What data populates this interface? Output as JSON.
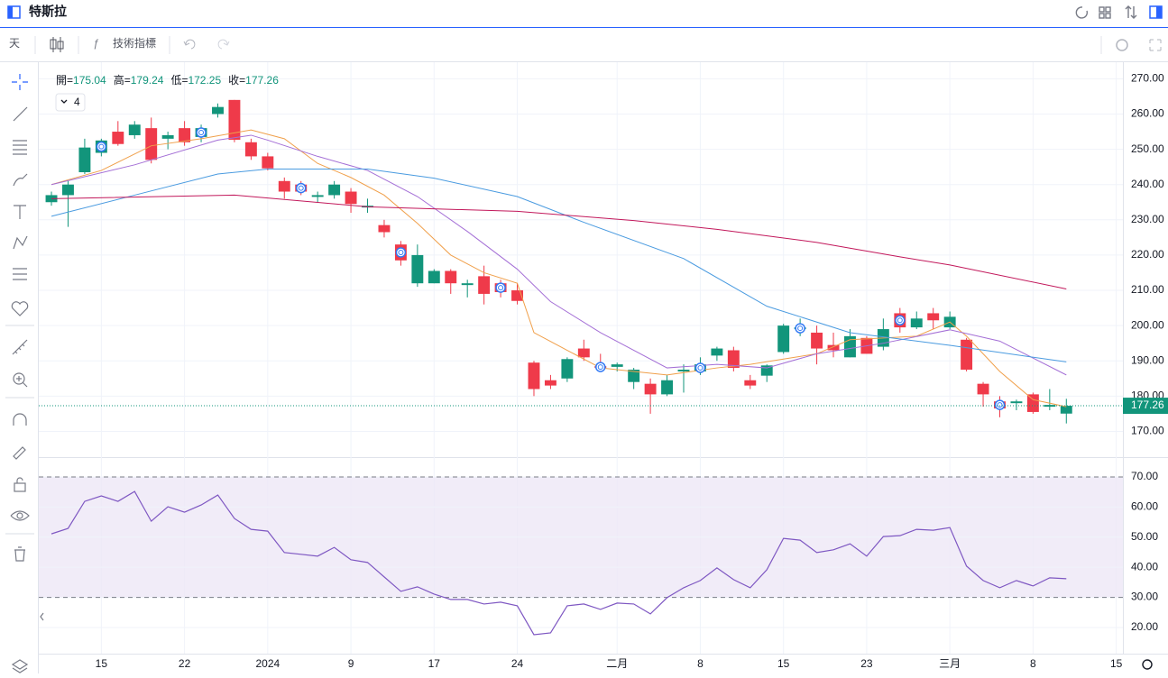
{
  "chart_data": {
    "type": "candlestick",
    "title": "特斯拉",
    "interval": "天",
    "indicator_button": "技術指標",
    "ohlc_labels": [
      "開=",
      "高=",
      "低=",
      "收="
    ],
    "ma_count": 4,
    "up_color": "#12957b",
    "down_color": "#ef3a4a",
    "open": [
      235,
      237,
      243.5,
      249,
      255,
      254,
      256,
      253,
      256,
      253.5,
      260,
      264,
      252,
      248,
      241,
      240,
      236.5,
      237,
      238,
      233.5,
      228.5,
      223,
      212,
      212,
      215.5,
      211.5,
      214,
      212,
      210,
      189.5,
      184.5,
      185,
      193.5,
      188.5,
      188.3,
      184,
      183.5,
      180.5,
      187,
      187,
      191.5,
      193,
      184.5,
      185.8,
      192.5,
      199,
      198,
      194.5,
      191,
      196.5,
      194,
      203.5,
      199.5,
      203.5,
      199.5,
      196,
      183.5,
      178.5,
      178,
      180.5,
      177,
      175.04
    ],
    "high": [
      238,
      241,
      253,
      253,
      258,
      258,
      259,
      255,
      258,
      257,
      263,
      264,
      253,
      249,
      242,
      241,
      238,
      241,
      239,
      236,
      230,
      224,
      223,
      216,
      216,
      213,
      217,
      213,
      212,
      190,
      186,
      191,
      196,
      192,
      189.5,
      188,
      185,
      186,
      189,
      191,
      194,
      194,
      186,
      189,
      200.5,
      202,
      200,
      198,
      199,
      197,
      202,
      205,
      204,
      205,
      204,
      196.5,
      184,
      180,
      179,
      181,
      182,
      179.24
    ],
    "low": [
      234,
      228,
      243,
      248,
      251,
      253,
      246,
      250,
      251,
      252,
      259,
      252,
      247,
      244,
      236,
      237,
      235,
      236,
      232,
      232,
      225,
      217,
      211,
      212,
      209,
      208,
      206,
      208,
      206,
      180,
      182,
      184,
      190,
      187,
      187,
      182,
      175,
      180,
      181,
      186,
      190,
      187,
      182,
      184,
      192,
      197,
      189,
      191,
      191,
      192,
      193,
      198,
      199,
      199,
      199,
      187,
      177,
      174,
      176,
      175,
      176,
      172.25
    ],
    "close": [
      237,
      240,
      250.5,
      252.5,
      251.5,
      257,
      247,
      254,
      252,
      256,
      262,
      252.7,
      248,
      244.6,
      238,
      238,
      237,
      240,
      234.5,
      234,
      226.5,
      218.5,
      220,
      215.5,
      212,
      212,
      209,
      209.5,
      207,
      182,
      183,
      190.5,
      191,
      188,
      189,
      187.5,
      180.5,
      184.5,
      187.5,
      189,
      193.5,
      188,
      183,
      188.7,
      200,
      199.5,
      193.5,
      193,
      197,
      192,
      199,
      199.5,
      202,
      201.5,
      202.5,
      187.5,
      180.5,
      176.5,
      178.5,
      175.5,
      177.5,
      177.26
    ],
    "event_markers": [
      3,
      9,
      15,
      21,
      27,
      33,
      39,
      45,
      51,
      57
    ],
    "ma_series": [
      {
        "color": "#f0a04b",
        "x": [
          0,
          3,
          6,
          9,
          12,
          14,
          16,
          18,
          20,
          22,
          24,
          26,
          28,
          29,
          31,
          33,
          35,
          37,
          40,
          42,
          44,
          46,
          48,
          50,
          52,
          54,
          55,
          57,
          59,
          61
        ],
        "values": [
          240,
          244,
          251,
          253,
          255.5,
          253,
          246,
          242,
          237,
          229,
          220,
          215,
          212,
          198,
          193,
          188,
          187,
          186,
          188,
          189,
          190.5,
          192,
          196,
          196.5,
          197,
          201,
          197,
          187,
          179,
          177
        ]
      },
      {
        "color": "#a46fd6",
        "x": [
          0,
          5,
          10,
          12,
          13,
          16,
          19,
          22,
          25,
          28,
          30,
          33,
          37,
          40,
          43,
          46,
          50,
          54,
          57,
          61
        ],
        "values": [
          240,
          245.6,
          252.6,
          254,
          252.6,
          248,
          244,
          236.6,
          226.7,
          216,
          206.8,
          198,
          188,
          189,
          188,
          192,
          195,
          198.8,
          195.6,
          186
        ]
      },
      {
        "color": "#4a9be0",
        "x": [
          0,
          5,
          10,
          13,
          19,
          23,
          28,
          32,
          38,
          43,
          48,
          54,
          61
        ],
        "values": [
          231,
          237,
          243,
          244.4,
          244.4,
          241.8,
          236.6,
          229.3,
          219,
          205.5,
          198,
          194.4,
          189.7
        ]
      },
      {
        "color": "#c2185b",
        "x": [
          0,
          11,
          19,
          28,
          35,
          40,
          46,
          51,
          54,
          61
        ],
        "values": [
          236,
          237,
          233.7,
          232.4,
          229.8,
          227.3,
          223.6,
          219.5,
          217.2,
          210.4
        ]
      }
    ],
    "xlim": [
      -0.76,
      64.4
    ],
    "xticks": [
      {
        "value": 3,
        "label": "15"
      },
      {
        "value": 8,
        "label": "22"
      },
      {
        "value": 13,
        "label": "2024"
      },
      {
        "value": 18,
        "label": "9"
      },
      {
        "value": 23,
        "label": "17"
      },
      {
        "value": 28,
        "label": "24"
      },
      {
        "value": 34,
        "label": "二月"
      },
      {
        "value": 39,
        "label": "8"
      },
      {
        "value": 44,
        "label": "15"
      },
      {
        "value": 49,
        "label": "23"
      },
      {
        "value": 54,
        "label": "三月"
      },
      {
        "value": 59,
        "label": "8"
      },
      {
        "value": 64,
        "label": "15"
      }
    ],
    "ylim": [
      162.7,
      274.7
    ],
    "yticks": [
      {
        "value": 170,
        "label": "170.00"
      },
      {
        "value": 180,
        "label": "180.00"
      },
      {
        "value": 190,
        "label": "190.00"
      },
      {
        "value": 200,
        "label": "200.00"
      },
      {
        "value": 210,
        "label": "210.00"
      },
      {
        "value": 220,
        "label": "220.00"
      },
      {
        "value": 230,
        "label": "230.00"
      },
      {
        "value": 240,
        "label": "240.00"
      },
      {
        "value": 250,
        "label": "250.00"
      },
      {
        "value": 260,
        "label": "260.00"
      },
      {
        "value": 270,
        "label": "270.00"
      }
    ],
    "rsi": {
      "color": "#7e57c2",
      "band_color": "#ede7f6",
      "bands": [
        30,
        70
      ],
      "values": [
        51.1,
        52.9,
        61.9,
        63.7,
        61.9,
        65.2,
        55.3,
        60.1,
        58.3,
        60.7,
        64,
        56.2,
        52.6,
        52,
        44.9,
        44.3,
        43.7,
        46.6,
        42.5,
        41.6,
        36.8,
        32,
        33.5,
        31.1,
        29.3,
        29.3,
        27.8,
        28.4,
        27.2,
        17.6,
        18.2,
        27.2,
        27.8,
        26,
        28.1,
        27.8,
        24.5,
        29.9,
        33.2,
        35.6,
        39.8,
        35.9,
        33.2,
        39.2,
        49.6,
        49,
        44.9,
        45.8,
        47.8,
        43.7,
        50.2,
        50.5,
        52.6,
        52.3,
        53.2,
        40.4,
        35.6,
        33.2,
        35.6,
        33.8,
        36.5,
        36.2
      ],
      "ylim": [
        11.3,
        76.6
      ],
      "yticks": [
        {
          "value": 20,
          "label": "20.00"
        },
        {
          "value": 30,
          "label": "30.00"
        },
        {
          "value": 40,
          "label": "40.00"
        },
        {
          "value": 50,
          "label": "50.00"
        },
        {
          "value": 60,
          "label": "60.00"
        },
        {
          "value": 70,
          "label": "70.00"
        }
      ]
    }
  }
}
